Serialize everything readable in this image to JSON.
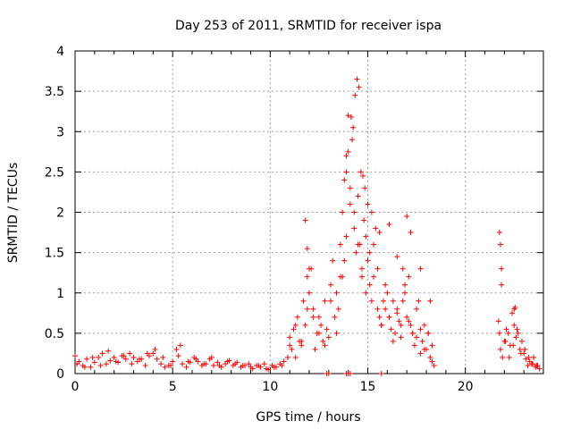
{
  "chart_data": {
    "type": "scatter",
    "title": "Day 253 of 2011, SRMTID for receiver ispa",
    "xlabel": "GPS time / hours",
    "ylabel": "SRMTID / TECUs",
    "xlim": [
      0,
      24
    ],
    "ylim": [
      0,
      4
    ],
    "x_ticks": [
      0,
      5,
      10,
      15,
      20
    ],
    "y_ticks": [
      0,
      0.5,
      1,
      1.5,
      2,
      2.5,
      3,
      3.5,
      4
    ],
    "y_tick_labels": [
      "0",
      "0.5",
      "1",
      "1.5",
      "2",
      "2.5",
      "3",
      "3.5",
      "4"
    ],
    "grid": true,
    "marker": "+",
    "marker_color": "#ff0000",
    "series": [
      {
        "name": "SRMTID",
        "x": [
          0.0,
          0.2,
          0.4,
          0.6,
          0.8,
          1.0,
          1.2,
          1.4,
          1.6,
          1.8,
          2.0,
          2.2,
          2.4,
          2.6,
          2.8,
          3.0,
          3.2,
          3.4,
          3.6,
          3.8,
          4.0,
          4.2,
          4.4,
          4.6,
          4.8,
          5.0,
          5.2,
          5.3,
          5.5,
          5.7,
          5.9,
          6.1,
          6.3,
          6.5,
          6.7,
          6.9,
          7.1,
          7.3,
          7.5,
          7.7,
          7.9,
          8.1,
          8.3,
          8.5,
          8.7,
          8.9,
          9.1,
          9.3,
          9.5,
          9.7,
          9.9,
          10.1,
          10.3,
          10.5,
          10.7,
          10.9,
          11.0,
          11.1,
          11.2,
          11.3,
          11.4,
          11.5,
          11.6,
          11.7,
          11.8,
          11.9,
          12.0,
          12.1,
          12.2,
          12.3,
          12.4,
          12.5,
          12.6,
          12.7,
          12.8,
          12.9,
          13.0,
          13.1,
          13.2,
          13.3,
          13.4,
          13.5,
          13.6,
          13.7,
          13.8,
          13.9,
          14.0,
          14.1,
          14.2,
          14.3,
          14.4,
          14.5,
          14.6,
          14.7,
          14.8,
          14.9,
          15.0,
          15.1,
          15.2,
          15.3,
          15.4,
          15.5,
          15.6,
          15.7,
          15.8,
          15.9,
          16.0,
          16.1,
          16.2,
          16.3,
          16.4,
          16.5,
          16.6,
          16.7,
          16.8,
          16.9,
          17.0,
          17.1,
          17.2,
          17.3,
          17.4,
          17.5,
          17.6,
          17.7,
          17.8,
          17.9,
          18.0,
          18.1,
          18.2,
          18.3,
          18.4,
          21.7,
          21.8,
          21.9,
          22.0,
          22.1,
          22.2,
          22.3,
          22.4,
          22.5,
          22.6,
          22.7,
          22.8,
          22.9,
          23.0,
          23.1,
          23.2,
          23.3,
          23.4,
          23.5,
          23.6,
          23.7,
          23.8,
          0.1,
          0.5,
          0.9,
          1.3,
          1.7,
          2.1,
          2.5,
          2.9,
          3.3,
          3.7,
          4.1,
          4.5,
          4.9,
          5.4,
          5.8,
          6.2,
          6.6,
          7.0,
          7.4,
          7.8,
          8.2,
          8.6,
          9.0,
          9.4,
          9.8,
          10.2,
          10.6,
          11.0,
          11.3,
          11.6,
          11.9,
          12.2,
          12.5,
          12.8,
          13.1,
          13.4,
          13.7,
          13.9,
          14.1,
          14.3,
          14.5,
          14.7,
          14.9,
          15.1,
          15.3,
          15.5,
          15.7,
          15.9,
          16.1,
          16.3,
          16.5,
          16.7,
          16.9,
          17.1,
          17.3,
          17.5,
          17.7,
          17.9,
          18.1,
          18.3,
          21.75,
          21.85,
          22.05,
          22.25,
          22.45,
          22.65,
          22.85,
          23.05,
          23.25,
          23.45,
          23.65,
          11.8,
          11.9,
          12.0,
          13.6,
          13.8,
          13.9,
          14.0,
          14.15,
          14.25,
          14.35,
          14.45,
          14.55,
          14.65,
          14.75,
          14.85,
          15.0,
          15.2,
          15.6,
          16.1,
          16.5,
          16.8,
          17.0,
          17.2,
          17.7,
          18.2,
          21.75,
          21.8,
          21.85,
          22.5,
          22.55,
          12.9,
          13.0,
          13.9,
          14.0,
          14.1,
          15.7
        ],
        "y": [
          0.22,
          0.15,
          0.1,
          0.18,
          0.08,
          0.14,
          0.2,
          0.25,
          0.12,
          0.16,
          0.2,
          0.14,
          0.22,
          0.18,
          0.25,
          0.2,
          0.15,
          0.18,
          0.1,
          0.22,
          0.25,
          0.18,
          0.12,
          0.08,
          0.1,
          0.15,
          0.3,
          0.22,
          0.12,
          0.08,
          0.14,
          0.2,
          0.15,
          0.1,
          0.12,
          0.18,
          0.1,
          0.14,
          0.08,
          0.12,
          0.16,
          0.1,
          0.14,
          0.08,
          0.1,
          0.12,
          0.06,
          0.1,
          0.08,
          0.12,
          0.05,
          0.1,
          0.08,
          0.12,
          0.15,
          0.2,
          0.45,
          0.3,
          0.55,
          0.2,
          0.7,
          0.4,
          0.35,
          0.9,
          0.6,
          1.2,
          1.0,
          1.3,
          0.8,
          0.3,
          0.5,
          0.7,
          0.6,
          0.4,
          0.9,
          0.55,
          0.45,
          1.1,
          1.4,
          0.7,
          0.5,
          0.8,
          1.6,
          2.0,
          2.4,
          2.7,
          3.2,
          2.1,
          2.9,
          1.8,
          1.5,
          2.2,
          1.6,
          1.2,
          1.9,
          1.7,
          1.4,
          1.1,
          0.9,
          1.6,
          1.8,
          1.3,
          0.7,
          0.6,
          0.9,
          0.8,
          1.0,
          0.7,
          0.55,
          0.4,
          0.5,
          0.8,
          0.65,
          0.45,
          0.9,
          1.1,
          0.7,
          1.2,
          0.6,
          0.5,
          0.35,
          0.8,
          0.9,
          0.55,
          0.4,
          0.6,
          0.3,
          0.5,
          0.2,
          0.15,
          0.1,
          0.65,
          0.3,
          0.2,
          0.4,
          0.55,
          0.5,
          0.35,
          0.75,
          0.6,
          0.45,
          0.5,
          0.3,
          0.4,
          0.25,
          0.18,
          0.1,
          0.15,
          0.12,
          0.2,
          0.08,
          0.1,
          0.06,
          0.12,
          0.08,
          0.2,
          0.1,
          0.28,
          0.15,
          0.22,
          0.12,
          0.18,
          0.25,
          0.3,
          0.2,
          0.1,
          0.35,
          0.15,
          0.18,
          0.12,
          0.2,
          0.1,
          0.15,
          0.12,
          0.1,
          0.08,
          0.1,
          0.06,
          0.08,
          0.1,
          0.35,
          0.6,
          0.4,
          0.8,
          0.7,
          0.5,
          0.35,
          0.9,
          1.0,
          1.2,
          1.7,
          2.3,
          2.0,
          1.6,
          1.3,
          1.0,
          1.5,
          1.2,
          0.8,
          0.6,
          1.1,
          0.7,
          0.9,
          0.75,
          0.6,
          1.0,
          0.65,
          0.5,
          0.45,
          0.25,
          0.3,
          0.5,
          0.35,
          0.5,
          1.3,
          0.4,
          0.2,
          0.35,
          0.55,
          0.25,
          0.3,
          0.2,
          0.12,
          0.1,
          1.9,
          1.55,
          1.3,
          1.2,
          1.4,
          2.5,
          2.75,
          3.18,
          3.05,
          3.45,
          3.65,
          3.55,
          2.5,
          2.45,
          2.3,
          2.1,
          2.0,
          1.75,
          1.85,
          1.45,
          1.3,
          1.95,
          1.75,
          1.3,
          0.9,
          1.75,
          1.6,
          1.1,
          0.8,
          0.82,
          0.0,
          0.0,
          0.0,
          0.0,
          0.0,
          0.0
        ]
      }
    ]
  }
}
